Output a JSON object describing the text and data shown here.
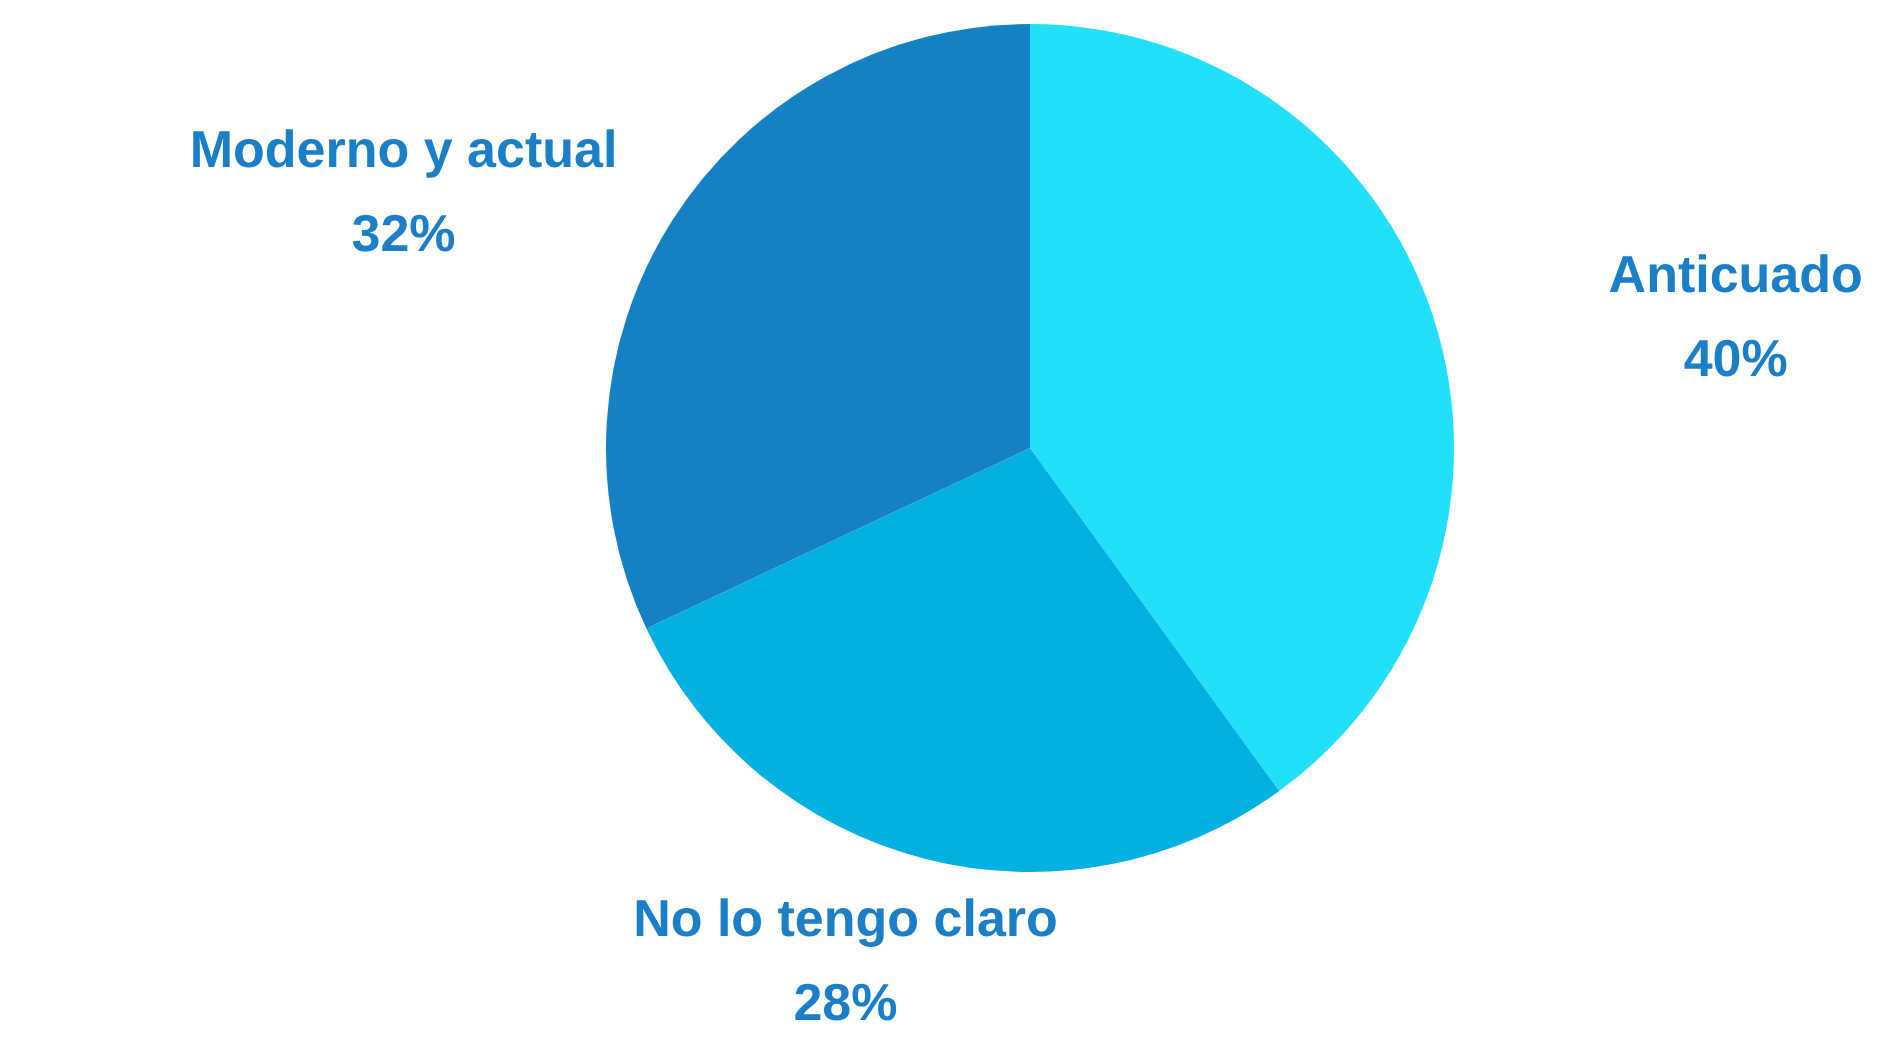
{
  "chart_data": {
    "type": "pie",
    "categories": [
      "Anticuado",
      "No lo tengo claro",
      "Moderno y actual"
    ],
    "values": [
      40,
      28,
      32
    ],
    "colors": [
      "#22e0f8",
      "#02b0e2",
      "#1581c5"
    ],
    "value_labels": [
      "40%",
      "28%",
      "32%"
    ],
    "legend": false
  }
}
